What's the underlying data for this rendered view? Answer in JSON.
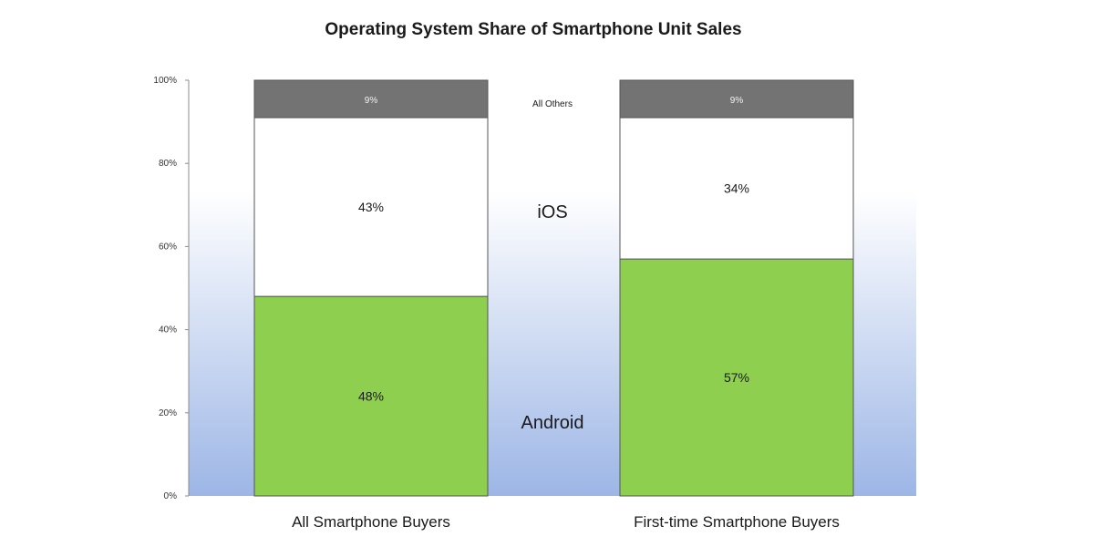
{
  "chart_data": {
    "type": "bar",
    "stacked": true,
    "title": "Operating System Share of Smartphone Unit Sales",
    "categories": [
      "All Smartphone Buyers",
      "First-time Smartphone Buyers"
    ],
    "series": [
      {
        "name": "Android",
        "values": [
          48,
          57
        ],
        "labels": [
          "48%",
          "57%"
        ],
        "color": "#8fcf50"
      },
      {
        "name": "iOS",
        "values": [
          43,
          34
        ],
        "labels": [
          "43%",
          "34%"
        ],
        "color": "#ffffff"
      },
      {
        "name": "All Others",
        "values": [
          9,
          9
        ],
        "labels": [
          "9%",
          "9%"
        ],
        "color": "#737373"
      }
    ],
    "ylim": [
      0,
      100
    ],
    "yticks": [
      "0%",
      "20%",
      "40%",
      "60%",
      "80%",
      "100%"
    ],
    "ytick_values": [
      0,
      20,
      40,
      60,
      80,
      100
    ],
    "background_gradient": [
      "#ffffff",
      "#9db6e6"
    ],
    "grid": false,
    "legend_position": "between-bars"
  }
}
